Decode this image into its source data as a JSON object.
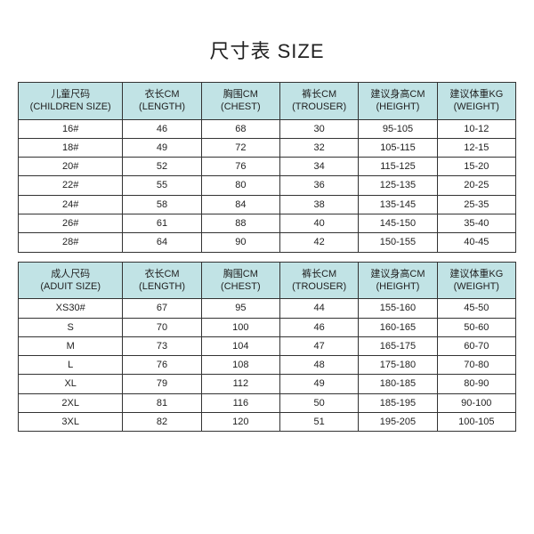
{
  "title": "尺寸表 SIZE",
  "children_table": {
    "header_bg": "#c1e3e5",
    "border_color": "#333333",
    "text_color": "#222222",
    "headers": [
      {
        "cn": "儿童尺码",
        "en": "(CHILDREN SIZE)"
      },
      {
        "cn": "衣长CM",
        "en": "(LENGTH)"
      },
      {
        "cn": "胸围CM",
        "en": "(CHEST)"
      },
      {
        "cn": "裤长CM",
        "en": "(TROUSER)"
      },
      {
        "cn": "建议身高CM",
        "en": "(HEIGHT)"
      },
      {
        "cn": "建议体重KG",
        "en": "(WEIGHT)"
      }
    ],
    "rows": [
      [
        "16#",
        "46",
        "68",
        "30",
        "95-105",
        "10-12"
      ],
      [
        "18#",
        "49",
        "72",
        "32",
        "105-115",
        "12-15"
      ],
      [
        "20#",
        "52",
        "76",
        "34",
        "115-125",
        "15-20"
      ],
      [
        "22#",
        "55",
        "80",
        "36",
        "125-135",
        "20-25"
      ],
      [
        "24#",
        "58",
        "84",
        "38",
        "135-145",
        "25-35"
      ],
      [
        "26#",
        "61",
        "88",
        "40",
        "145-150",
        "35-40"
      ],
      [
        "28#",
        "64",
        "90",
        "42",
        "150-155",
        "40-45"
      ]
    ]
  },
  "adult_table": {
    "header_bg": "#c1e3e5",
    "headers": [
      {
        "cn": "成人尺码",
        "en": "(ADUIT SIZE)"
      },
      {
        "cn": "衣长CM",
        "en": "(LENGTH)"
      },
      {
        "cn": "胸围CM",
        "en": "(CHEST)"
      },
      {
        "cn": "裤长CM",
        "en": "(TROUSER)"
      },
      {
        "cn": "建议身高CM",
        "en": "(HEIGHT)"
      },
      {
        "cn": "建议体重KG",
        "en": "(WEIGHT)"
      }
    ],
    "rows": [
      [
        "XS30#",
        "67",
        "95",
        "44",
        "155-160",
        "45-50"
      ],
      [
        "S",
        "70",
        "100",
        "46",
        "160-165",
        "50-60"
      ],
      [
        "M",
        "73",
        "104",
        "47",
        "165-175",
        "60-70"
      ],
      [
        "L",
        "76",
        "108",
        "48",
        "175-180",
        "70-80"
      ],
      [
        "XL",
        "79",
        "112",
        "49",
        "180-185",
        "80-90"
      ],
      [
        "2XL",
        "81",
        "116",
        "50",
        "185-195",
        "90-100"
      ],
      [
        "3XL",
        "82",
        "120",
        "51",
        "195-205",
        "100-105"
      ]
    ]
  }
}
